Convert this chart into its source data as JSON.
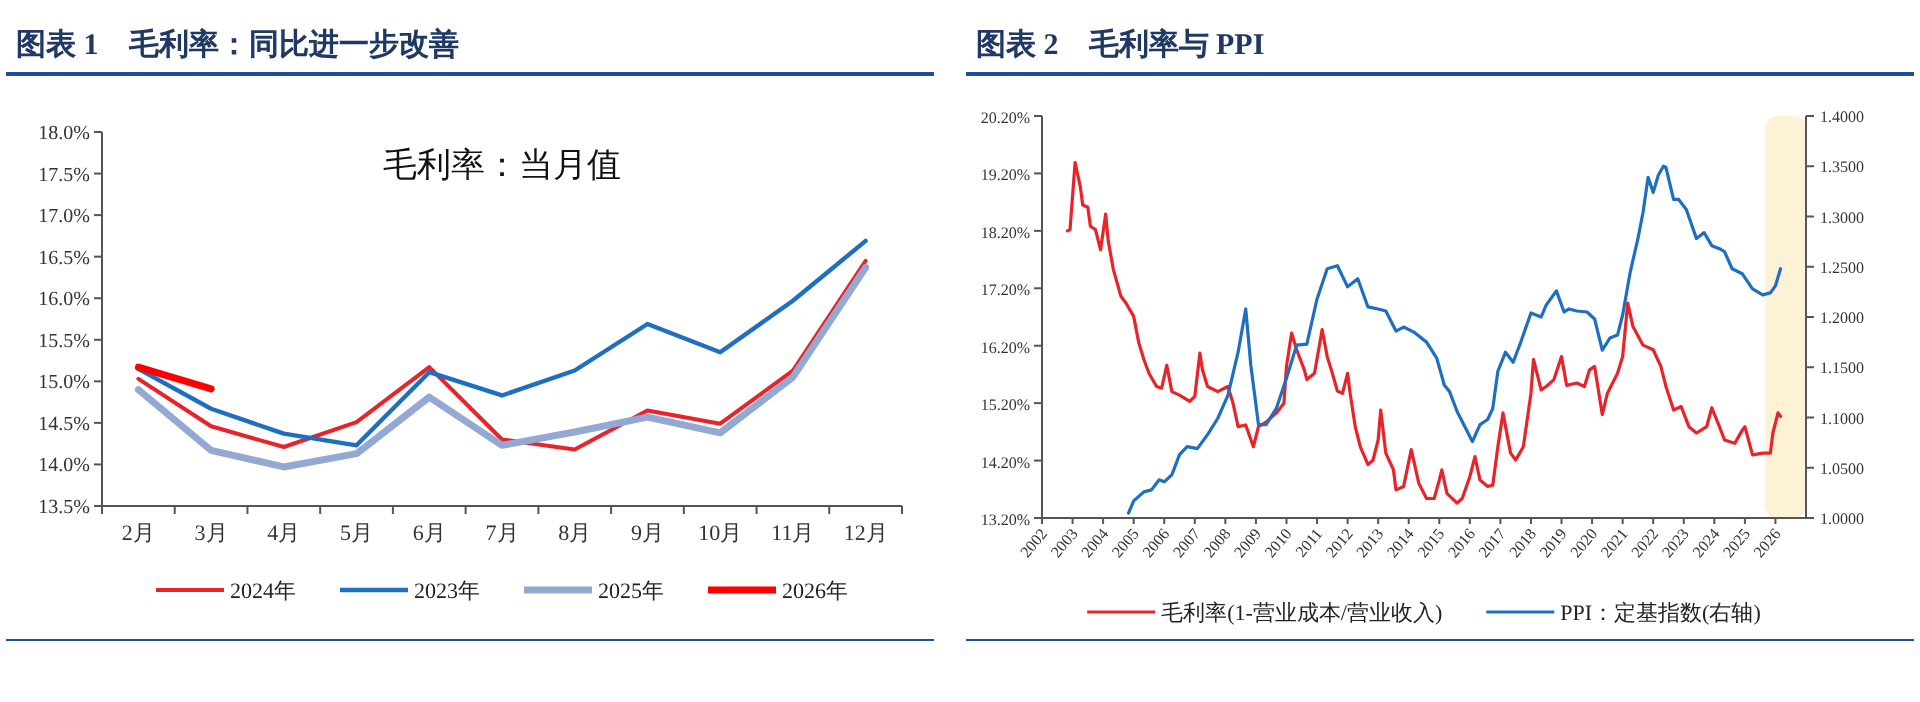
{
  "chart_data": [
    {
      "type": "line",
      "title": "图表 1　毛利率：同比进一步改善",
      "annotations": [
        "毛利率：当月值"
      ],
      "categories": [
        "2月",
        "3月",
        "4月",
        "5月",
        "6月",
        "7月",
        "8月",
        "9月",
        "10月",
        "11月",
        "12月"
      ],
      "ylim": [
        13.5,
        18.0
      ],
      "yticks": [
        {
          "value": 13.5,
          "label": "13.5%"
        },
        {
          "value": 14.0,
          "label": "14.0%"
        },
        {
          "value": 14.5,
          "label": "14.5%"
        },
        {
          "value": 15.0,
          "label": "15.0%"
        },
        {
          "value": 15.5,
          "label": "15.5%"
        },
        {
          "value": 16.0,
          "label": "16.0%"
        },
        {
          "value": 16.5,
          "label": "16.5%"
        },
        {
          "value": 17.0,
          "label": "17.0%"
        },
        {
          "value": 17.5,
          "label": "17.5%"
        },
        {
          "value": 18.0,
          "label": "18.0%"
        }
      ],
      "legend": "bottom",
      "series": [
        {
          "name": "2024年",
          "color": "#e8232a",
          "values": [
            15.03,
            14.46,
            14.21,
            14.51,
            15.17,
            14.3,
            14.18,
            14.65,
            14.49,
            15.13,
            16.45
          ]
        },
        {
          "name": "2023年",
          "color": "#1f6fc0",
          "values": [
            15.15,
            14.67,
            14.37,
            14.23,
            15.11,
            14.83,
            15.13,
            15.69,
            15.35,
            15.97,
            16.69
          ]
        },
        {
          "name": "2025年",
          "color": "#94a8d4",
          "values": [
            14.9,
            14.17,
            13.97,
            14.13,
            14.81,
            14.23,
            14.39,
            14.57,
            14.38,
            15.05,
            16.37
          ]
        },
        {
          "name": "2026年",
          "color": "#ff0000",
          "values": [
            15.17,
            14.91,
            null,
            null,
            null,
            null,
            null,
            null,
            null,
            null,
            null
          ]
        }
      ]
    },
    {
      "type": "line",
      "title": "图表 2　毛利率与 PPI",
      "xlim": [
        "2002",
        "2027"
      ],
      "xticks": [
        "2002",
        "2003",
        "2004",
        "2005",
        "2006",
        "2007",
        "2008",
        "2009",
        "2010",
        "2011",
        "2012",
        "2013",
        "2014",
        "2015",
        "2016",
        "2017",
        "2018",
        "2019",
        "2020",
        "2021",
        "2022",
        "2023",
        "2024",
        "2025",
        "2026"
      ],
      "ylim": [
        13.2,
        20.2
      ],
      "yticks": [
        {
          "value": 13.2,
          "label": "13.20%"
        },
        {
          "value": 14.2,
          "label": "14.20%"
        },
        {
          "value": 15.2,
          "label": "15.20%"
        },
        {
          "value": 16.2,
          "label": "16.20%"
        },
        {
          "value": 17.2,
          "label": "17.20%"
        },
        {
          "value": 18.2,
          "label": "18.20%"
        },
        {
          "value": 19.2,
          "label": "19.20%"
        },
        {
          "value": 20.2,
          "label": "20.20%"
        }
      ],
      "y2lim": [
        1.0,
        1.4
      ],
      "y2ticks": [
        {
          "value": 1.0,
          "label": "1.0000"
        },
        {
          "value": 1.05,
          "label": "1.0500"
        },
        {
          "value": 1.1,
          "label": "1.1000"
        },
        {
          "value": 1.15,
          "label": "1.1500"
        },
        {
          "value": 1.2,
          "label": "1.2000"
        },
        {
          "value": 1.25,
          "label": "1.2500"
        },
        {
          "value": 1.3,
          "label": "1.3000"
        },
        {
          "value": 1.35,
          "label": "1.3500"
        },
        {
          "value": 1.4,
          "label": "1.4000"
        }
      ],
      "bands": [
        {
          "axis": "x",
          "from": "2025-09",
          "to": "2027-01",
          "color": "#fdf1d6"
        }
      ],
      "legend": "bottom",
      "series": [
        {
          "name": "毛利率(1-营业成本/营业收入)",
          "color": "#e8232a",
          "x": [
            "2002-11",
            "2002-12",
            "2003-02",
            "2003-04",
            "2003-05",
            "2003-07",
            "2003-08",
            "2003-10",
            "2003-12",
            "2004-02",
            "2004-03",
            "2004-05",
            "2004-08",
            "2004-10",
            "2005-01",
            "2005-03",
            "2005-05",
            "2005-07",
            "2005-10",
            "2005-12",
            "2006-02",
            "2006-04",
            "2006-07",
            "2006-11",
            "2007-01",
            "2007-03",
            "2007-04",
            "2007-06",
            "2007-10",
            "2008-02",
            "2008-04",
            "2008-06",
            "2008-09",
            "2008-12",
            "2009-02",
            "2009-05",
            "2009-09",
            "2009-12",
            "2010-01",
            "2010-03",
            "2010-05",
            "2010-08",
            "2010-09",
            "2010-12",
            "2011-03",
            "2011-05",
            "2011-07",
            "2011-09",
            "2011-11",
            "2012-01",
            "2012-02",
            "2012-04",
            "2012-06",
            "2012-09",
            "2012-11",
            "2013-01",
            "2013-02",
            "2013-04",
            "2013-07",
            "2013-08",
            "2013-11",
            "2014-02",
            "2014-05",
            "2014-08",
            "2014-11",
            "2015-01",
            "2015-02",
            "2015-04",
            "2015-08",
            "2015-10",
            "2016-01",
            "2016-03",
            "2016-05",
            "2016-08",
            "2016-10",
            "2016-12",
            "2017-02",
            "2017-05",
            "2017-07",
            "2017-10",
            "2018-01",
            "2018-02",
            "2018-05",
            "2018-07",
            "2018-10",
            "2019-01",
            "2019-03",
            "2019-07",
            "2019-10",
            "2019-12",
            "2020-02",
            "2020-05",
            "2020-07",
            "2020-11",
            "2021-01",
            "2021-03",
            "2021-05",
            "2021-09",
            "2022-01",
            "2022-04",
            "2022-06",
            "2022-09",
            "2022-12",
            "2023-03",
            "2023-06",
            "2023-10",
            "2023-12",
            "2024-03",
            "2024-05",
            "2024-09",
            "2024-12",
            "2025-01",
            "2025-04",
            "2025-08",
            "2025-11",
            "2025-12",
            "2026-02",
            "2026-03"
          ],
          "values": [
            18.2,
            18.22,
            19.39,
            18.98,
            18.65,
            18.61,
            18.28,
            18.22,
            17.87,
            18.49,
            18.03,
            17.53,
            17.06,
            16.94,
            16.71,
            16.25,
            15.96,
            15.72,
            15.49,
            15.46,
            15.86,
            15.4,
            15.34,
            15.23,
            15.32,
            16.07,
            15.78,
            15.49,
            15.4,
            15.49,
            15.2,
            14.79,
            14.82,
            14.44,
            14.79,
            14.87,
            15.03,
            15.2,
            15.84,
            16.42,
            16.13,
            15.78,
            15.61,
            15.72,
            16.48,
            16.01,
            15.72,
            15.41,
            15.37,
            15.72,
            15.37,
            14.79,
            14.44,
            14.13,
            14.21,
            14.56,
            15.08,
            14.33,
            14.04,
            13.69,
            13.75,
            14.39,
            13.8,
            13.54,
            13.54,
            13.86,
            14.04,
            13.63,
            13.46,
            13.54,
            13.92,
            14.27,
            13.86,
            13.75,
            13.77,
            14.44,
            15.03,
            14.33,
            14.21,
            14.44,
            15.37,
            15.96,
            15.43,
            15.49,
            15.61,
            16.01,
            15.51,
            15.55,
            15.49,
            15.78,
            15.84,
            15.0,
            15.37,
            15.72,
            16.01,
            16.94,
            16.54,
            16.21,
            16.13,
            15.84,
            15.49,
            15.08,
            15.14,
            14.79,
            14.68,
            14.79,
            15.12,
            14.79,
            14.56,
            14.5,
            14.73,
            14.79,
            14.3,
            14.33,
            14.33,
            14.68,
            15.03,
            14.97
          ]
        },
        {
          "name": "PPI：定基指数(右轴)",
          "color": "#1f6fc0",
          "axis": "y2",
          "x": [
            "2004-11",
            "2005-01",
            "2005-05",
            "2005-08",
            "2005-11",
            "2006-01",
            "2006-04",
            "2006-07",
            "2006-10",
            "2007-02",
            "2007-06",
            "2007-10",
            "2008-02",
            "2008-06",
            "2008-09",
            "2008-11",
            "2009-02",
            "2009-05",
            "2009-09",
            "2010-01",
            "2010-05",
            "2010-09",
            "2011-01",
            "2011-05",
            "2011-09",
            "2012-01",
            "2012-05",
            "2012-09",
            "2013-01",
            "2013-04",
            "2013-08",
            "2013-11",
            "2014-03",
            "2014-08",
            "2014-12",
            "2015-03",
            "2015-05",
            "2015-08",
            "2015-12",
            "2016-02",
            "2016-05",
            "2016-08",
            "2016-10",
            "2016-12",
            "2017-03",
            "2017-06",
            "2017-09",
            "2018-01",
            "2018-05",
            "2018-07",
            "2018-11",
            "2019-02",
            "2019-04",
            "2019-07",
            "2019-11",
            "2020-02",
            "2020-05",
            "2020-08",
            "2020-11",
            "2021-01",
            "2021-04",
            "2021-07",
            "2021-09",
            "2021-11",
            "2022-01",
            "2022-03",
            "2022-05",
            "2022-06",
            "2022-09",
            "2022-11",
            "2023-02",
            "2023-06",
            "2023-09",
            "2023-12",
            "2024-03",
            "2024-05",
            "2024-08",
            "2024-12",
            "2025-04",
            "2025-08",
            "2025-11",
            "2026-01",
            "2026-03"
          ],
          "values": [
            1.005,
            1.017,
            1.026,
            1.028,
            1.038,
            1.036,
            1.043,
            1.063,
            1.071,
            1.069,
            1.083,
            1.099,
            1.122,
            1.165,
            1.208,
            1.152,
            1.093,
            1.093,
            1.109,
            1.139,
            1.172,
            1.173,
            1.218,
            1.248,
            1.251,
            1.23,
            1.238,
            1.21,
            1.208,
            1.206,
            1.186,
            1.19,
            1.185,
            1.175,
            1.159,
            1.132,
            1.126,
            1.106,
            1.086,
            1.076,
            1.093,
            1.098,
            1.109,
            1.146,
            1.165,
            1.155,
            1.175,
            1.204,
            1.2,
            1.212,
            1.226,
            1.205,
            1.208,
            1.206,
            1.205,
            1.198,
            1.167,
            1.179,
            1.182,
            1.202,
            1.245,
            1.278,
            1.304,
            1.339,
            1.324,
            1.341,
            1.35,
            1.349,
            1.317,
            1.317,
            1.307,
            1.278,
            1.284,
            1.271,
            1.268,
            1.265,
            1.248,
            1.243,
            1.228,
            1.222,
            1.224,
            1.231,
            1.248
          ]
        }
      ]
    }
  ]
}
